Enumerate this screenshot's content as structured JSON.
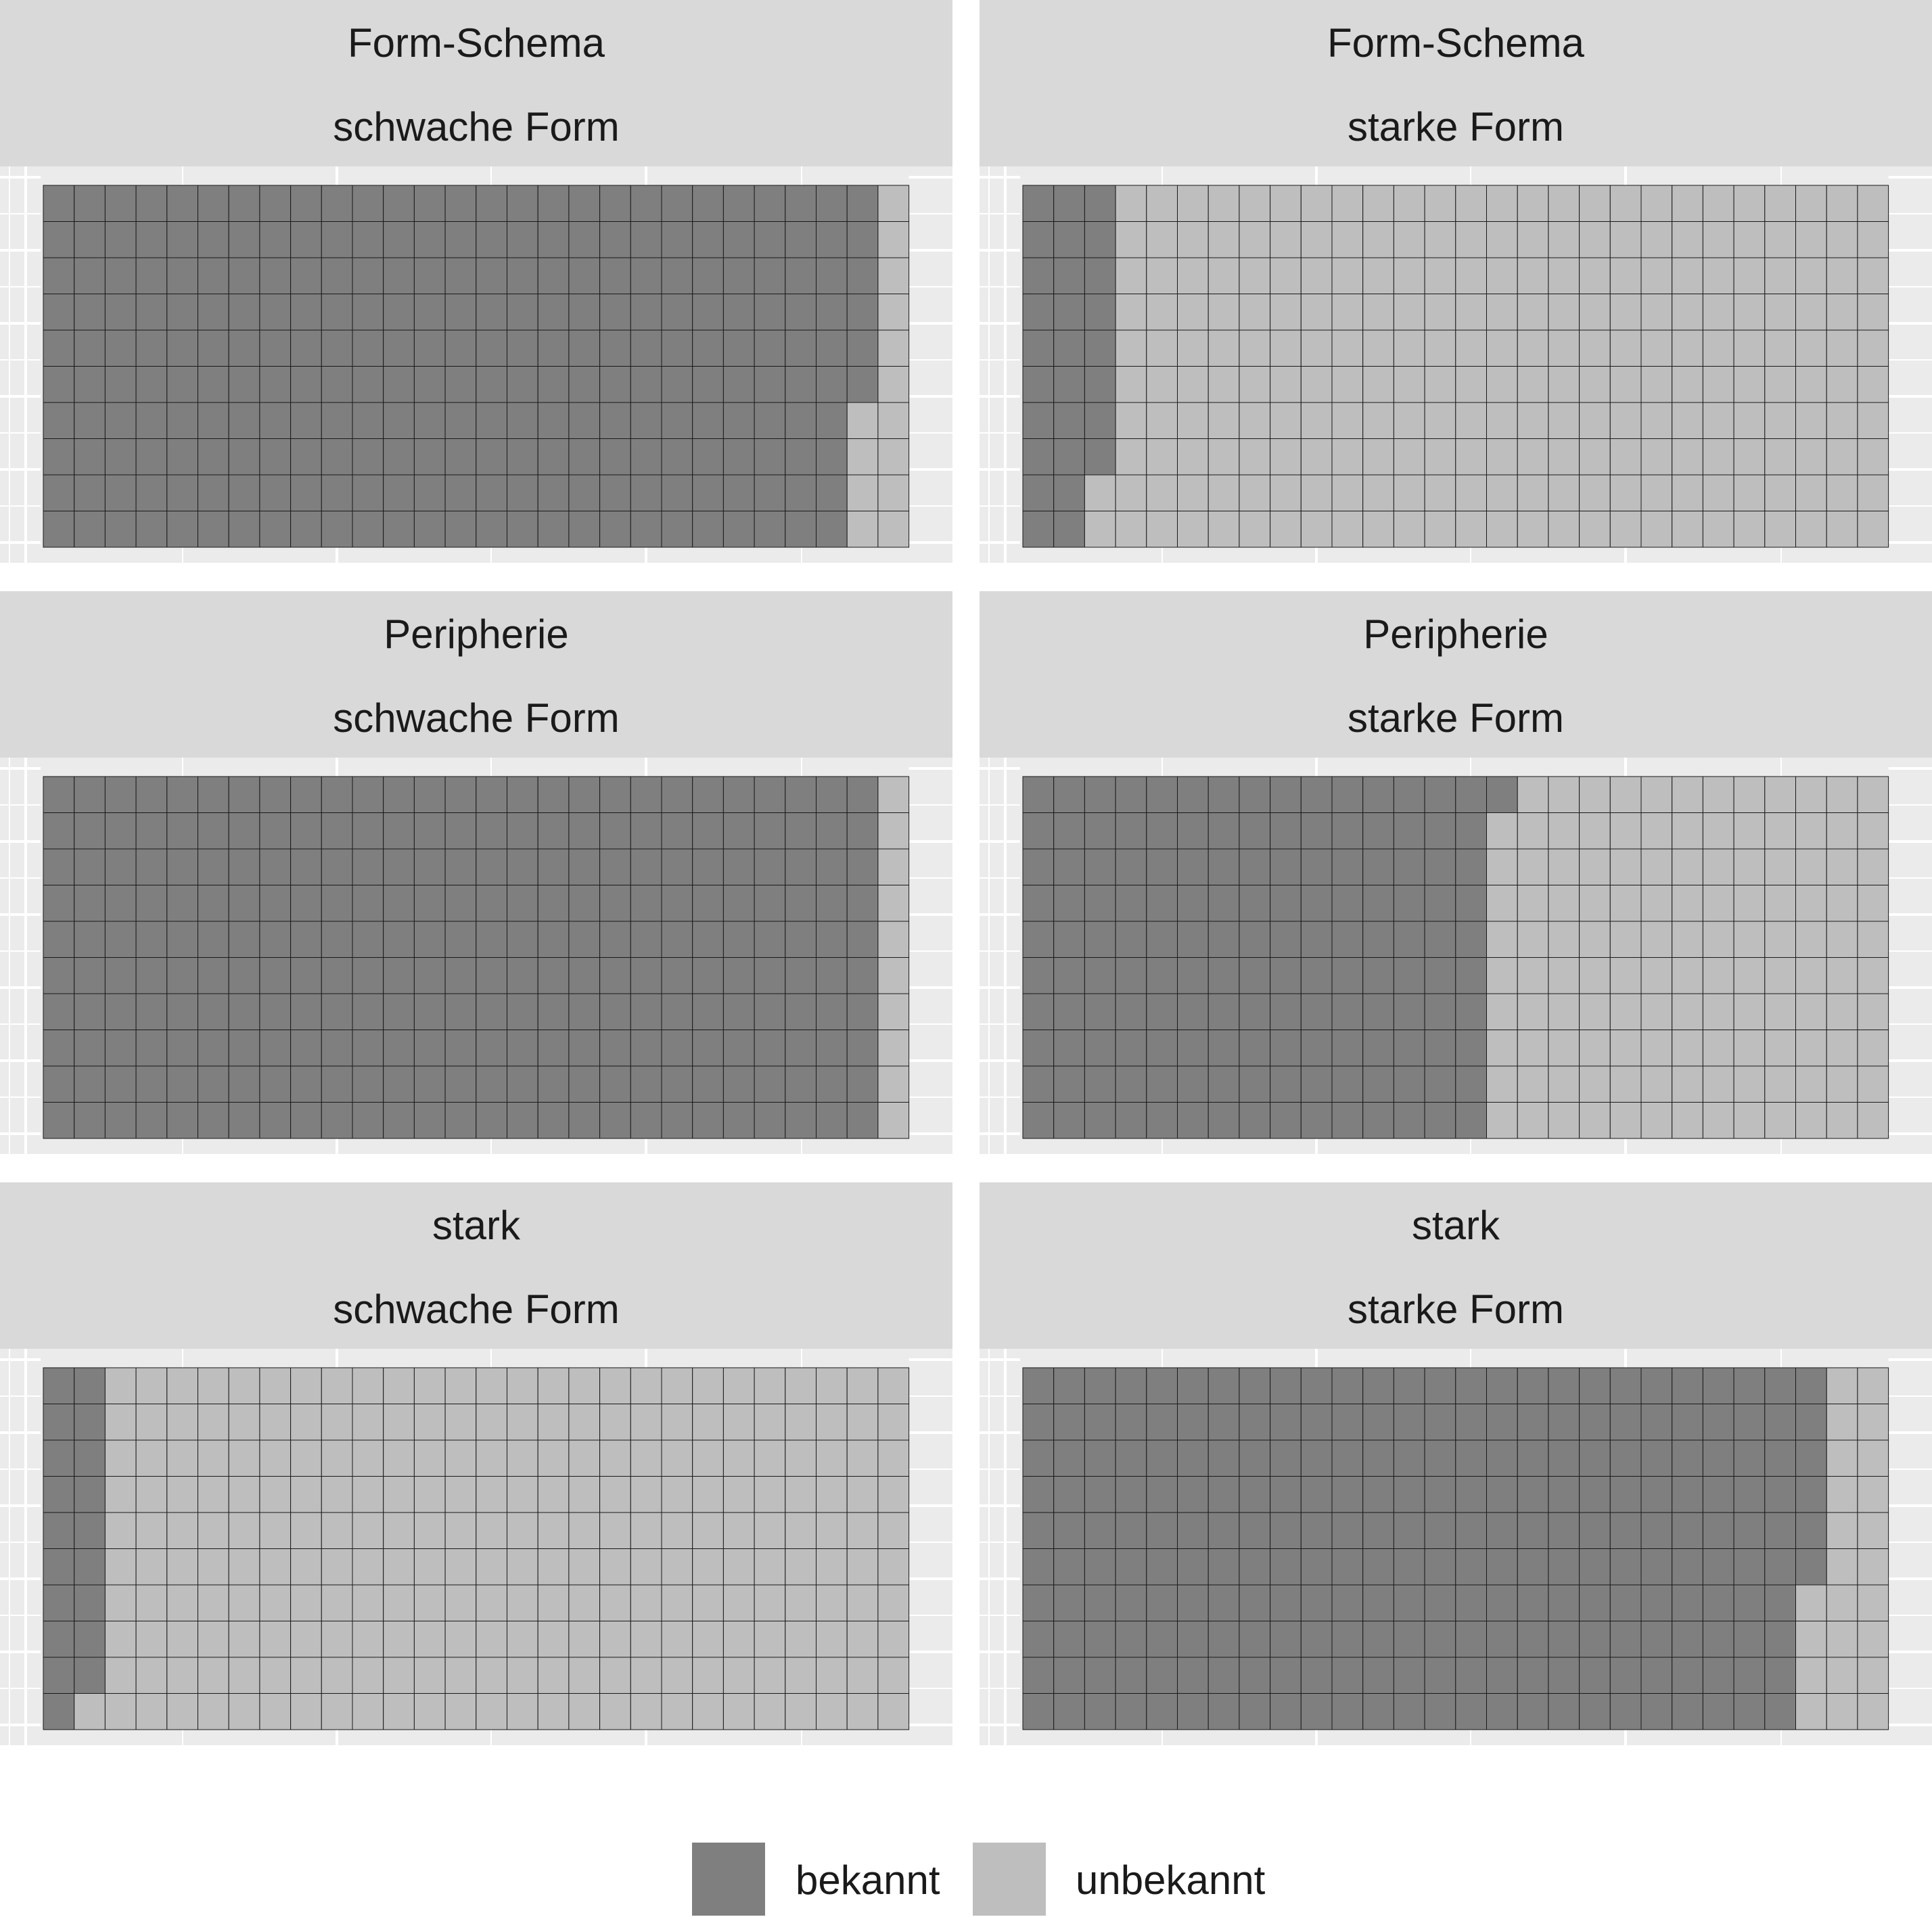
{
  "chart_data": {
    "type": "waffle",
    "grid": {
      "columns": 28,
      "rows": 10,
      "fill_order": "column-wise, top-to-bottom then left-to-right"
    },
    "colors": {
      "bekannt": "#7f7f7f",
      "unbekannt": "#bebebe",
      "panel_background": "#ebebeb",
      "strip_background": "#d9d9d9",
      "gridline": "#ffffff",
      "cell_border": "#1a1a1a"
    },
    "legend": {
      "position": "bottom",
      "items": [
        {
          "key": "bekannt",
          "label": "bekannt"
        },
        {
          "key": "unbekannt",
          "label": "unbekannt"
        }
      ]
    },
    "panels": [
      {
        "row_label": "Form-Schema",
        "col_label": "schwache Form",
        "bekannt": 266,
        "unbekannt": 14
      },
      {
        "row_label": "Form-Schema",
        "col_label": "starke Form",
        "bekannt": 28,
        "unbekannt": 252
      },
      {
        "row_label": "Peripherie",
        "col_label": "schwache Form",
        "bekannt": 270,
        "unbekannt": 10
      },
      {
        "row_label": "Peripherie",
        "col_label": "starke Form",
        "bekannt": 151,
        "unbekannt": 129
      },
      {
        "row_label": "stark",
        "col_label": "schwache Form",
        "bekannt": 19,
        "unbekannt": 261
      },
      {
        "row_label": "stark",
        "col_label": "starke Form",
        "bekannt": 256,
        "unbekannt": 24
      }
    ]
  }
}
